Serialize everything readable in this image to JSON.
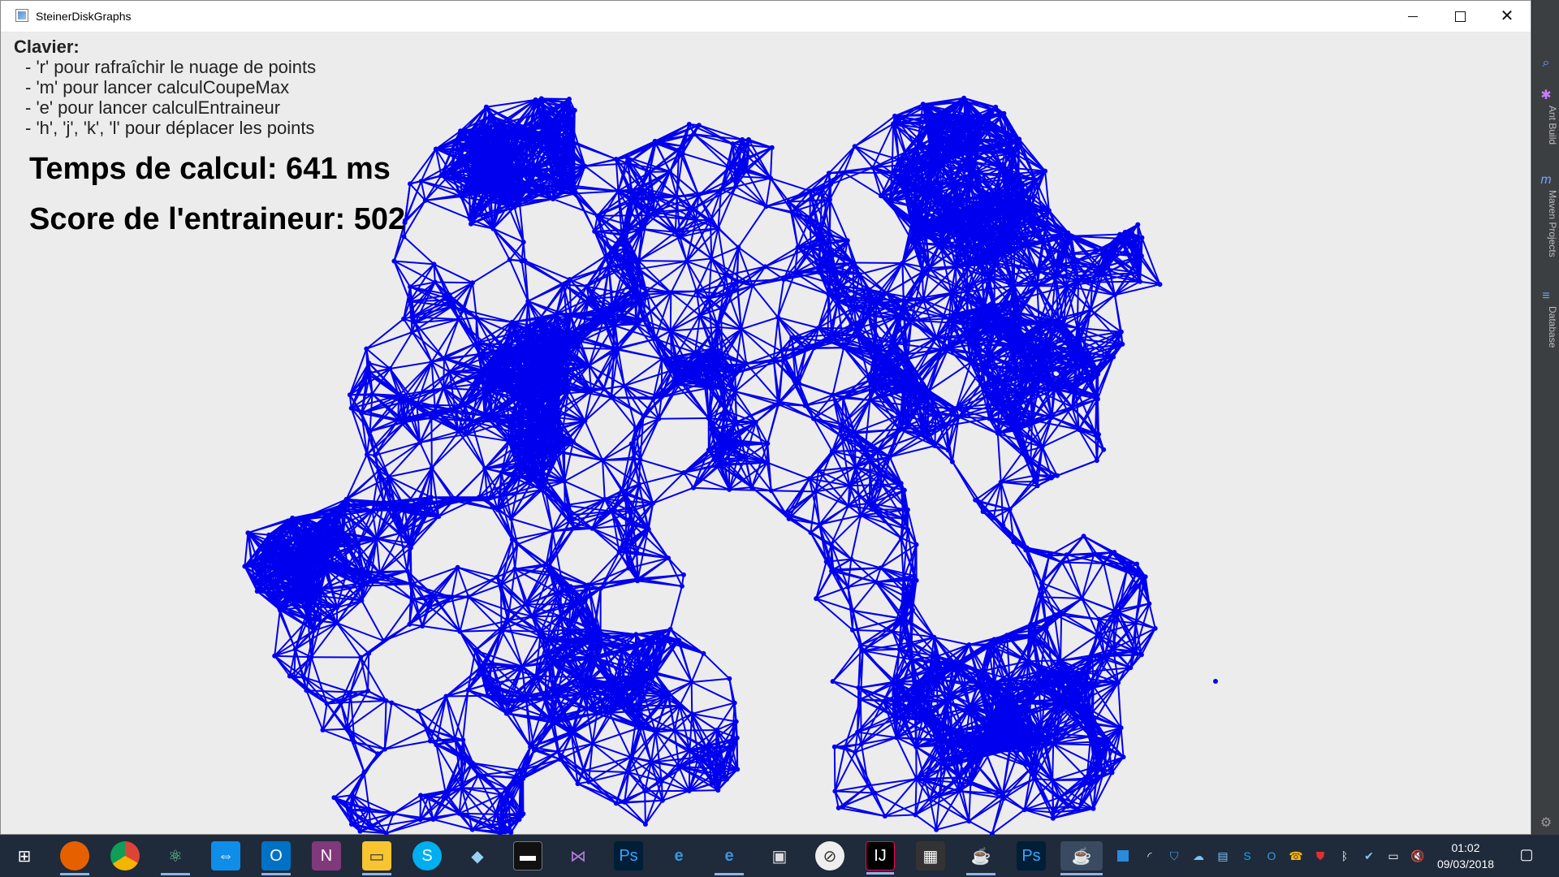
{
  "window": {
    "title": "SteinerDiskGraphs"
  },
  "help": {
    "heading": "Clavier:",
    "lines": [
      "- 'r' pour rafraîchir le nuage de points",
      "- 'm' pour lancer calculCoupeMax",
      "- 'e' pour lancer calculEntraineur",
      "- 'h', 'j', 'k', 'l' pour déplacer les points"
    ]
  },
  "stats": {
    "compute_time": "Temps de calcul: 641 ms",
    "trainer_score": "Score de l'entraineur: 502"
  },
  "graph": {
    "edge_color": "#0000ee",
    "node_color": "#0000ee",
    "background": "#ececec"
  },
  "ide_sidebar": {
    "tabs": [
      "Ant Build",
      "Maven Projects",
      "Database"
    ]
  },
  "taskbar": {
    "apps": [
      "windows-start-icon",
      "firefox-icon",
      "chrome-icon",
      "atom-icon",
      "teamviewer-icon",
      "outlook-icon",
      "onenote-icon",
      "file-explorer-icon",
      "skype-icon",
      "sketchup-icon",
      "terminal-icon",
      "visual-studio-icon",
      "photoshop-icon",
      "internet-explorer-icon",
      "edge-icon",
      "remote-desktop-icon",
      "inkscape-icon",
      "intellij-icon",
      "calculator-icon",
      "java-icon",
      "photoshop-icon-2",
      "java-app-icon"
    ],
    "clock_time": "01:02",
    "clock_date": "09/03/2018"
  }
}
